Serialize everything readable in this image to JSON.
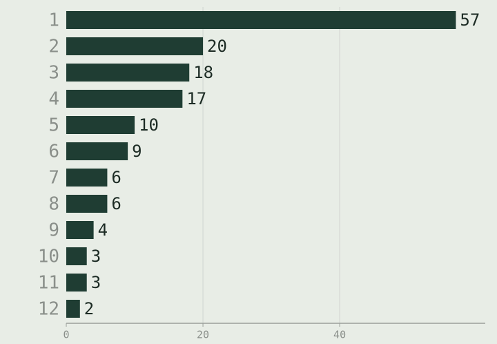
{
  "chart_data": {
    "type": "bar",
    "orientation": "horizontal",
    "categories": [
      "1",
      "2",
      "3",
      "4",
      "5",
      "6",
      "7",
      "8",
      "9",
      "10",
      "11",
      "12"
    ],
    "values": [
      57,
      20,
      18,
      17,
      10,
      9,
      6,
      6,
      4,
      3,
      3,
      2
    ],
    "color": "#1f3d33",
    "xlim": [
      0,
      61.3
    ],
    "xticks": [
      0,
      20,
      40
    ],
    "grid": true
  }
}
